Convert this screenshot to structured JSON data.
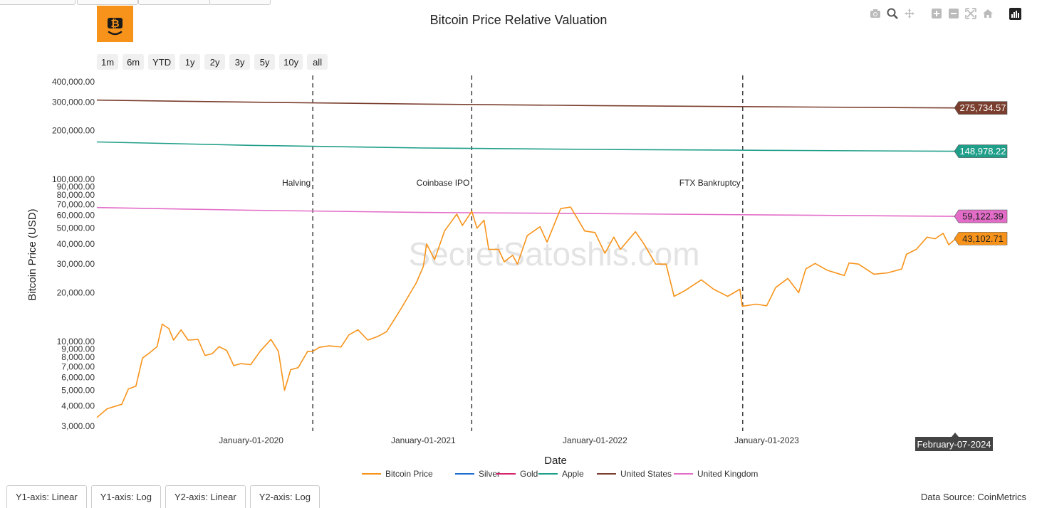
{
  "title": "Bitcoin Price Relative Valuation",
  "watermark": "SecretSatoshis.com",
  "data_source": "Data Source: CoinMetrics",
  "range_buttons": [
    "1m",
    "6m",
    "YTD",
    "1y",
    "2y",
    "3y",
    "5y",
    "10y",
    "all"
  ],
  "axis_tabs": [
    "Y1-axis: Linear",
    "Y1-axis: Log",
    "Y2-axis: Linear",
    "Y2-axis: Log"
  ],
  "modebar_icons": [
    "camera-icon",
    "zoom-icon",
    "pan-icon",
    "zoom-in-icon",
    "zoom-out-icon",
    "autoscale-icon",
    "home-icon",
    "plotly-logo-icon"
  ],
  "hover_label": "February-07-2024",
  "colors": {
    "bitcoin": "#f7931a",
    "silver": "#1f6fd1",
    "gold": "#d6246e",
    "apple": "#1f9e89",
    "united_states": "#7a3e2e",
    "united_kingdom": "#e36cc8"
  },
  "chart_data": {
    "type": "line",
    "title": "Bitcoin Price Relative Valuation",
    "xlabel": "Date",
    "ylabel": "Bitcoin Price (USD)",
    "yscale": "log",
    "x_range": [
      "2019-02-07",
      "2024-02-07"
    ],
    "ylim": [
      2800,
      420000
    ],
    "x_ticks": [
      {
        "date": "2020-01-01",
        "label": "January-01-2020"
      },
      {
        "date": "2021-01-01",
        "label": "January-01-2021"
      },
      {
        "date": "2022-01-01",
        "label": "January-01-2022"
      },
      {
        "date": "2023-01-01",
        "label": "January-01-2023"
      },
      {
        "date": "2024-01-01",
        "label": "Ja"
      }
    ],
    "y_ticks": [
      {
        "value": 3000,
        "label": "3,000.00"
      },
      {
        "value": 4000,
        "label": "4,000.00"
      },
      {
        "value": 5000,
        "label": "5,000.00"
      },
      {
        "value": 6000,
        "label": "6,000.00"
      },
      {
        "value": 7000,
        "label": "7,000.00"
      },
      {
        "value": 8000,
        "label": "8,000.00"
      },
      {
        "value": 9000,
        "label": "9,000.00"
      },
      {
        "value": 10000,
        "label": "10,000.00"
      },
      {
        "value": 20000,
        "label": "20,000.00"
      },
      {
        "value": 30000,
        "label": "30,000.00"
      },
      {
        "value": 40000,
        "label": "40,000.00"
      },
      {
        "value": 50000,
        "label": "50,000.00"
      },
      {
        "value": 60000,
        "label": "60,000.00"
      },
      {
        "value": 70000,
        "label": "70,000.00"
      },
      {
        "value": 80000,
        "label": "80,000.00"
      },
      {
        "value": 90000,
        "label": "90,000.00"
      },
      {
        "value": 100000,
        "label": "100,000.00"
      },
      {
        "value": 200000,
        "label": "200,000.00"
      },
      {
        "value": 300000,
        "label": "300,000.00"
      },
      {
        "value": 400000,
        "label": "400,000.00"
      }
    ],
    "annotations": [
      {
        "date": "2020-05-11",
        "label": "Halving"
      },
      {
        "date": "2021-04-14",
        "label": "Coinbase IPO"
      },
      {
        "date": "2022-11-11",
        "label": "FTX Bankruptcy"
      }
    ],
    "legend": {
      "placement": "bottom-center"
    },
    "series": [
      {
        "name": "Bitcoin Price",
        "color": "#f7931a",
        "end_label": "43,102.71",
        "points": [
          [
            "2019-02-07",
            3400
          ],
          [
            "2019-03-01",
            3850
          ],
          [
            "2019-04-01",
            4100
          ],
          [
            "2019-04-15",
            5100
          ],
          [
            "2019-05-01",
            5300
          ],
          [
            "2019-05-15",
            7900
          ],
          [
            "2019-06-01",
            8600
          ],
          [
            "2019-06-15",
            9300
          ],
          [
            "2019-06-26",
            12800
          ],
          [
            "2019-07-10",
            12000
          ],
          [
            "2019-07-20",
            10200
          ],
          [
            "2019-08-05",
            11800
          ],
          [
            "2019-08-20",
            10200
          ],
          [
            "2019-09-10",
            10300
          ],
          [
            "2019-09-25",
            8200
          ],
          [
            "2019-10-10",
            8400
          ],
          [
            "2019-10-25",
            9300
          ],
          [
            "2019-11-10",
            8800
          ],
          [
            "2019-11-25",
            7100
          ],
          [
            "2019-12-10",
            7300
          ],
          [
            "2019-12-31",
            7200
          ],
          [
            "2020-01-20",
            8700
          ],
          [
            "2020-02-12",
            10300
          ],
          [
            "2020-02-28",
            8700
          ],
          [
            "2020-03-12",
            5000
          ],
          [
            "2020-03-25",
            6700
          ],
          [
            "2020-04-10",
            6900
          ],
          [
            "2020-04-30",
            8700
          ],
          [
            "2020-05-11",
            8700
          ],
          [
            "2020-05-25",
            9200
          ],
          [
            "2020-06-15",
            9400
          ],
          [
            "2020-07-10",
            9250
          ],
          [
            "2020-07-27",
            11000
          ],
          [
            "2020-08-15",
            11800
          ],
          [
            "2020-09-05",
            10200
          ],
          [
            "2020-09-25",
            10700
          ],
          [
            "2020-10-15",
            11500
          ],
          [
            "2020-10-30",
            13500
          ],
          [
            "2020-11-15",
            16000
          ],
          [
            "2020-12-01",
            19200
          ],
          [
            "2020-12-17",
            23000
          ],
          [
            "2021-01-01",
            29000
          ],
          [
            "2021-01-08",
            40000
          ],
          [
            "2021-01-25",
            32000
          ],
          [
            "2021-02-15",
            48000
          ],
          [
            "2021-03-13",
            61000
          ],
          [
            "2021-03-25",
            52000
          ],
          [
            "2021-04-14",
            63500
          ],
          [
            "2021-04-25",
            50000
          ],
          [
            "2021-05-10",
            56000
          ],
          [
            "2021-05-20",
            37000
          ],
          [
            "2021-06-10",
            37000
          ],
          [
            "2021-06-22",
            31000
          ],
          [
            "2021-07-10",
            34000
          ],
          [
            "2021-07-20",
            30000
          ],
          [
            "2021-08-10",
            45000
          ],
          [
            "2021-09-06",
            51000
          ],
          [
            "2021-09-21",
            41000
          ],
          [
            "2021-10-20",
            66000
          ],
          [
            "2021-11-10",
            67500
          ],
          [
            "2021-11-25",
            57000
          ],
          [
            "2021-12-10",
            48000
          ],
          [
            "2022-01-01",
            47000
          ],
          [
            "2022-01-22",
            35000
          ],
          [
            "2022-02-10",
            44000
          ],
          [
            "2022-02-24",
            37000
          ],
          [
            "2022-03-28",
            47500
          ],
          [
            "2022-04-15",
            40000
          ],
          [
            "2022-05-10",
            30000
          ],
          [
            "2022-06-01",
            30000
          ],
          [
            "2022-06-18",
            19000
          ],
          [
            "2022-07-10",
            20500
          ],
          [
            "2022-08-15",
            24000
          ],
          [
            "2022-09-10",
            21000
          ],
          [
            "2022-10-10",
            19000
          ],
          [
            "2022-11-05",
            21000
          ],
          [
            "2022-11-10",
            16500
          ],
          [
            "2022-12-10",
            17000
          ],
          [
            "2023-01-01",
            16600
          ],
          [
            "2023-01-20",
            21500
          ],
          [
            "2023-02-15",
            24500
          ],
          [
            "2023-03-10",
            20000
          ],
          [
            "2023-03-25",
            28000
          ],
          [
            "2023-04-14",
            30300
          ],
          [
            "2023-05-10",
            27500
          ],
          [
            "2023-06-15",
            25500
          ],
          [
            "2023-06-25",
            30500
          ],
          [
            "2023-07-15",
            30000
          ],
          [
            "2023-08-17",
            26000
          ],
          [
            "2023-09-15",
            26500
          ],
          [
            "2023-10-15",
            28000
          ],
          [
            "2023-10-25",
            34500
          ],
          [
            "2023-11-15",
            37000
          ],
          [
            "2023-12-08",
            44000
          ],
          [
            "2023-12-25",
            43000
          ],
          [
            "2024-01-11",
            46500
          ],
          [
            "2024-01-23",
            39500
          ],
          [
            "2024-02-07",
            43102.71
          ]
        ]
      },
      {
        "name": "Silver",
        "color": "#1f6fd1",
        "points": []
      },
      {
        "name": "Gold",
        "color": "#d6246e",
        "points": []
      },
      {
        "name": "Apple",
        "color": "#1f9e89",
        "end_label": "148,978.22",
        "points": [
          [
            "2019-02-07",
            170000
          ],
          [
            "2020-01-01",
            162000
          ],
          [
            "2021-01-01",
            156000
          ],
          [
            "2022-01-01",
            153000
          ],
          [
            "2023-01-01",
            151000
          ],
          [
            "2024-02-07",
            148978.22
          ]
        ]
      },
      {
        "name": "United States",
        "color": "#7a3e2e",
        "end_label": "275,734.57",
        "points": [
          [
            "2019-02-07",
            308000
          ],
          [
            "2020-01-01",
            299000
          ],
          [
            "2021-01-01",
            291000
          ],
          [
            "2022-01-01",
            285000
          ],
          [
            "2023-01-01",
            280000
          ],
          [
            "2024-02-07",
            275734.57
          ]
        ]
      },
      {
        "name": "United Kingdom",
        "color": "#e36cc8",
        "end_label": "59,122.39",
        "points": [
          [
            "2019-02-07",
            67000
          ],
          [
            "2020-01-01",
            64500
          ],
          [
            "2021-01-01",
            62500
          ],
          [
            "2022-01-01",
            61500
          ],
          [
            "2023-01-01",
            60300
          ],
          [
            "2024-02-07",
            59122.39
          ]
        ]
      }
    ]
  }
}
